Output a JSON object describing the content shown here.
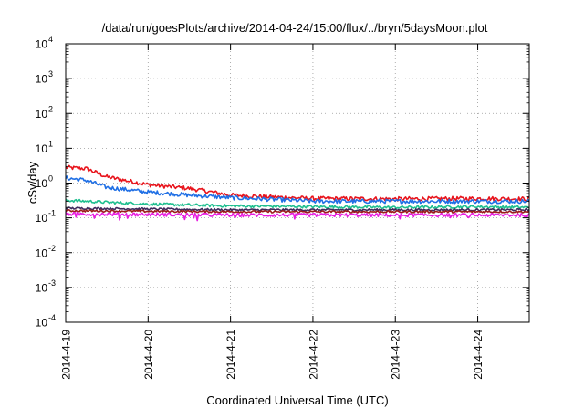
{
  "chart_data": {
    "type": "line",
    "title": "/data/run/goesPlots/archive/2014-04-24/15:00/flux/../bryn/5daysMoon.plot",
    "xlabel": "Coordinated Universal Time (UTC)",
    "ylabel": "cSv/day",
    "yscale": "log",
    "ylim": [
      0.0001,
      10000
    ],
    "y_ticks": [
      {
        "base": "10",
        "exp": "-4",
        "value": 0.0001
      },
      {
        "base": "10",
        "exp": "-3",
        "value": 0.001
      },
      {
        "base": "10",
        "exp": "-2",
        "value": 0.01
      },
      {
        "base": "10",
        "exp": "-1",
        "value": 0.1
      },
      {
        "base": "10",
        "exp": "0",
        "value": 1
      },
      {
        "base": "10",
        "exp": "1",
        "value": 10
      },
      {
        "base": "10",
        "exp": "2",
        "value": 100
      },
      {
        "base": "10",
        "exp": "3",
        "value": 1000
      },
      {
        "base": "10",
        "exp": "4",
        "value": 10000
      }
    ],
    "x_start": "2014-04-19T00:00",
    "x_end": "2014-04-24T15:00",
    "x_ticks": [
      "2014-4-19",
      "2014-4-20",
      "2014-4-21",
      "2014-4-22",
      "2014-4-23",
      "2014-4-24"
    ],
    "x_tick_dates": [
      "2014-04-19T00:00",
      "2014-04-20T00:00",
      "2014-04-21T00:00",
      "2014-04-22T00:00",
      "2014-04-23T00:00",
      "2014-04-24T00:00"
    ],
    "grid": true,
    "legend": "none",
    "series": [
      {
        "color": "#e8141c",
        "noise": 0.06,
        "spiky": false,
        "x": [
          "2014-04-19T00:00",
          "2014-04-19T06:00",
          "2014-04-19T12:00",
          "2014-04-20T00:00",
          "2014-04-20T12:00",
          "2014-04-21T00:00",
          "2014-04-21T12:00",
          "2014-04-22T00:00",
          "2014-04-23T00:00",
          "2014-04-24T00:00",
          "2014-04-24T15:00"
        ],
        "y": [
          2.8,
          2.6,
          1.5,
          0.9,
          0.7,
          0.45,
          0.4,
          0.36,
          0.35,
          0.36,
          0.35
        ]
      },
      {
        "color": "#1f6fe5",
        "noise": 0.06,
        "spiky": false,
        "x": [
          "2014-04-19T00:00",
          "2014-04-19T06:00",
          "2014-04-19T12:00",
          "2014-04-20T00:00",
          "2014-04-20T12:00",
          "2014-04-21T00:00",
          "2014-04-21T12:00",
          "2014-04-22T00:00",
          "2014-04-23T00:00",
          "2014-04-24T00:00",
          "2014-04-24T15:00"
        ],
        "y": [
          1.4,
          1.2,
          0.75,
          0.55,
          0.45,
          0.38,
          0.34,
          0.3,
          0.3,
          0.3,
          0.3
        ]
      },
      {
        "color": "#1fbf8f",
        "noise": 0.04,
        "spiky": false,
        "x": [
          "2014-04-19T00:00",
          "2014-04-19T12:00",
          "2014-04-20T00:00",
          "2014-04-21T00:00",
          "2014-04-22T00:00",
          "2014-04-23T00:00",
          "2014-04-24T00:00",
          "2014-04-24T15:00"
        ],
        "y": [
          0.32,
          0.28,
          0.25,
          0.22,
          0.21,
          0.2,
          0.21,
          0.2
        ]
      },
      {
        "color": "#3f2b5e",
        "noise": 0.03,
        "spiky": false,
        "x": [
          "2014-04-19T00:00",
          "2014-04-20T00:00",
          "2014-04-21T00:00",
          "2014-04-22T00:00",
          "2014-04-23T00:00",
          "2014-04-24T00:00",
          "2014-04-24T15:00"
        ],
        "y": [
          0.19,
          0.18,
          0.17,
          0.17,
          0.17,
          0.17,
          0.17
        ]
      },
      {
        "color": "#9b1b1b",
        "noise": 0.03,
        "spiky": false,
        "x": [
          "2014-04-19T00:00",
          "2014-04-20T00:00",
          "2014-04-21T00:00",
          "2014-04-22T00:00",
          "2014-04-23T00:00",
          "2014-04-24T00:00",
          "2014-04-24T15:00"
        ],
        "y": [
          0.16,
          0.155,
          0.15,
          0.15,
          0.15,
          0.15,
          0.15
        ]
      },
      {
        "color": "#e81ce0",
        "noise": 0.05,
        "spiky": true,
        "x": [
          "2014-04-19T00:00",
          "2014-04-20T00:00",
          "2014-04-21T00:00",
          "2014-04-22T00:00",
          "2014-04-23T00:00",
          "2014-04-24T00:00",
          "2014-04-24T15:00"
        ],
        "y": [
          0.13,
          0.125,
          0.12,
          0.12,
          0.12,
          0.12,
          0.12
        ]
      }
    ]
  }
}
